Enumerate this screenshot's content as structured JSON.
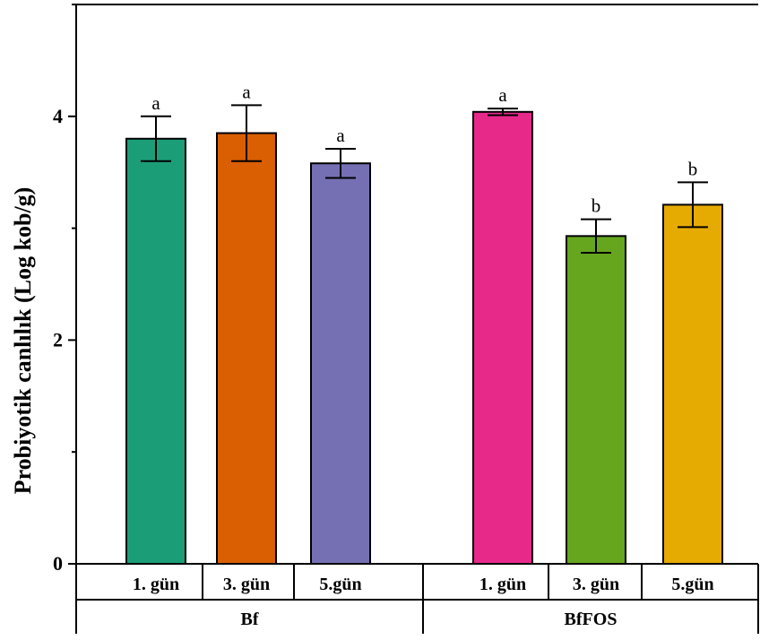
{
  "chart_data": {
    "type": "bar",
    "ylabel": "Probiyotik canlılık (Log kob/g)",
    "ylim": [
      0,
      5
    ],
    "yticks": [
      0,
      2,
      4
    ],
    "groups": [
      {
        "name": "Bf",
        "bars": [
          {
            "label": "1. gün",
            "value": 3.8,
            "error": 0.2,
            "sig": "a",
            "color": "#1b9e77"
          },
          {
            "label": "3. gün",
            "value": 3.85,
            "error": 0.25,
            "sig": "a",
            "color": "#d95f02"
          },
          {
            "label": "5.gün",
            "value": 3.58,
            "error": 0.13,
            "sig": "a",
            "color": "#7570b3"
          }
        ]
      },
      {
        "name": "BfFOS",
        "bars": [
          {
            "label": "1. gün",
            "value": 4.04,
            "error": 0.03,
            "sig": "a",
            "color": "#e7298a"
          },
          {
            "label": "3. gün",
            "value": 2.93,
            "error": 0.15,
            "sig": "b",
            "color": "#66a61e"
          },
          {
            "label": "5.gün",
            "value": 3.21,
            "error": 0.2,
            "sig": "b",
            "color": "#e6ab02"
          }
        ]
      }
    ],
    "grid": false,
    "legend": "none"
  }
}
